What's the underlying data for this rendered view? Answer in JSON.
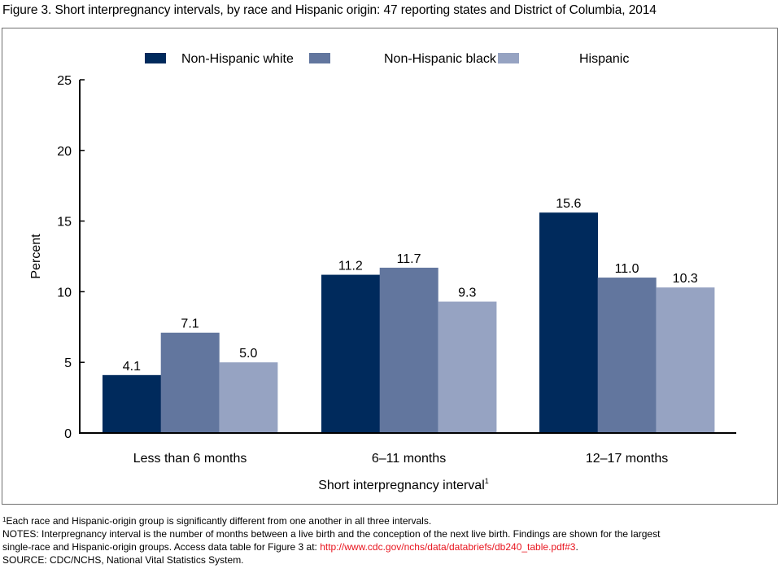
{
  "figure": {
    "title": "Figure 3. Short interpregnancy intervals, by race and Hispanic origin: 47 reporting states and District of Columbia, 2014"
  },
  "chart_data": {
    "type": "bar",
    "title": "Figure 3. Short interpregnancy intervals, by race and Hispanic origin: 47 reporting states and District of Columbia, 2014",
    "xlabel": "Short interpregnancy interval",
    "xlabel_superscript": "1",
    "ylabel": "Percent",
    "ylim": [
      0,
      25
    ],
    "yticks": [
      0,
      5,
      10,
      15,
      20,
      25
    ],
    "grid": false,
    "legend_position": "top-center",
    "categories": [
      "Less than 6 months",
      "6–11 months",
      "12–17 months"
    ],
    "series": [
      {
        "name": "Non-Hispanic white",
        "color": "#002a5c",
        "values": [
          4.1,
          11.2,
          15.6
        ],
        "labels": [
          "4.1",
          "11.2",
          "15.6"
        ]
      },
      {
        "name": "Non-Hispanic black",
        "color": "#62769e",
        "values": [
          7.1,
          11.7,
          11.0
        ],
        "labels": [
          "7.1",
          "11.7",
          "11.0"
        ]
      },
      {
        "name": "Hispanic",
        "color": "#96a3c2",
        "values": [
          5.0,
          9.3,
          10.3
        ],
        "labels": [
          "5.0",
          "9.3",
          "10.3"
        ]
      }
    ]
  },
  "footnotes": {
    "note1_marker": "1",
    "note1": "Each race and Hispanic-origin group is significantly different from one another in all three intervals.",
    "notes_line1": "NOTES: Interpregnancy interval is the number of months between a live birth and the conception of the next live birth. Findings are shown for the largest",
    "notes_line2_prefix": "single-race and Hispanic-origin groups. Access data table for Figure 3 at: ",
    "notes_link": "http://www.cdc.gov/nchs/data/databriefs/db240_table.pdf#3",
    "notes_line2_suffix": ".",
    "source": "SOURCE: CDC/NCHS, National Vital Statistics System."
  }
}
